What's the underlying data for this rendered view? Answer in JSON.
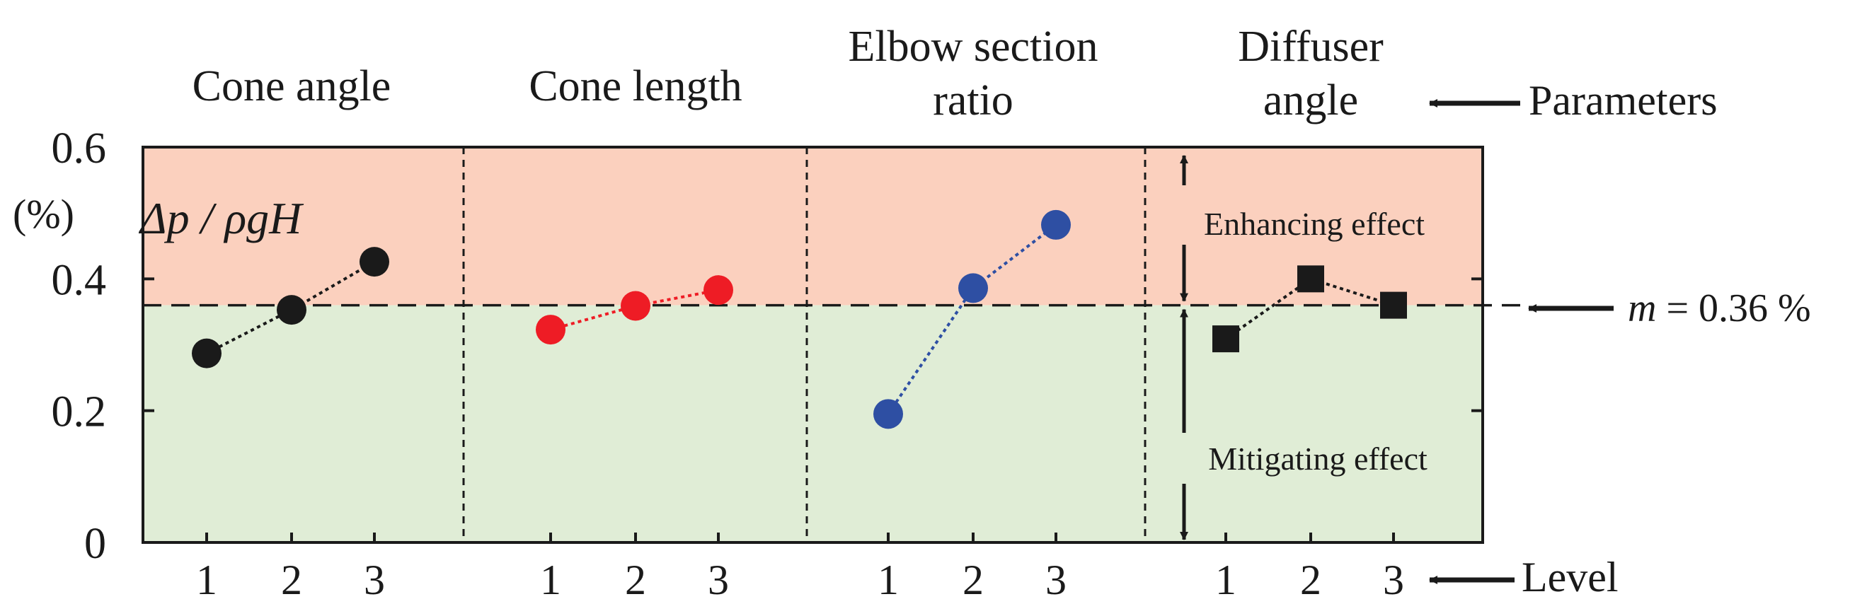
{
  "chart_data": {
    "type": "line",
    "title": "",
    "ylabel_unit": "(%)",
    "ylabel_formula": "Δp / ρgH",
    "ylim": [
      0,
      0.6
    ],
    "yticks": [
      0,
      0.2,
      0.4,
      0.6
    ],
    "ytick_labels": [
      "0",
      "0.2",
      "0.4",
      "0.6"
    ],
    "levels": [
      "1",
      "2",
      "3"
    ],
    "level_label": "Level",
    "parameters_label": "Parameters",
    "mean_value": 0.36,
    "mean_label_symbol": "m",
    "mean_label_value": " = 0.36 %",
    "enhancing_label": "Enhancing effect",
    "mitigating_label": "Mitigating effect",
    "colors": {
      "enhancing_band": "#fbd0be",
      "mitigating_band": "#e0edd6",
      "black": "#1a1a1a",
      "red": "#ee1c25",
      "blue": "#2e4fa3"
    },
    "series": [
      {
        "name_lines": [
          "Cone angle"
        ],
        "marker": "circle",
        "color": "#1a1a1a",
        "values": [
          0.287,
          0.353,
          0.426
        ]
      },
      {
        "name_lines": [
          "Cone length"
        ],
        "marker": "circle",
        "color": "#ee1c25",
        "values": [
          0.323,
          0.359,
          0.383
        ]
      },
      {
        "name_lines": [
          "Elbow section",
          "ratio"
        ],
        "marker": "circle",
        "color": "#2e4fa3",
        "values": [
          0.195,
          0.386,
          0.482
        ]
      },
      {
        "name_lines": [
          "Diffuser",
          "angle"
        ],
        "marker": "square",
        "color": "#1a1a1a",
        "values": [
          0.309,
          0.4,
          0.36
        ]
      }
    ]
  }
}
